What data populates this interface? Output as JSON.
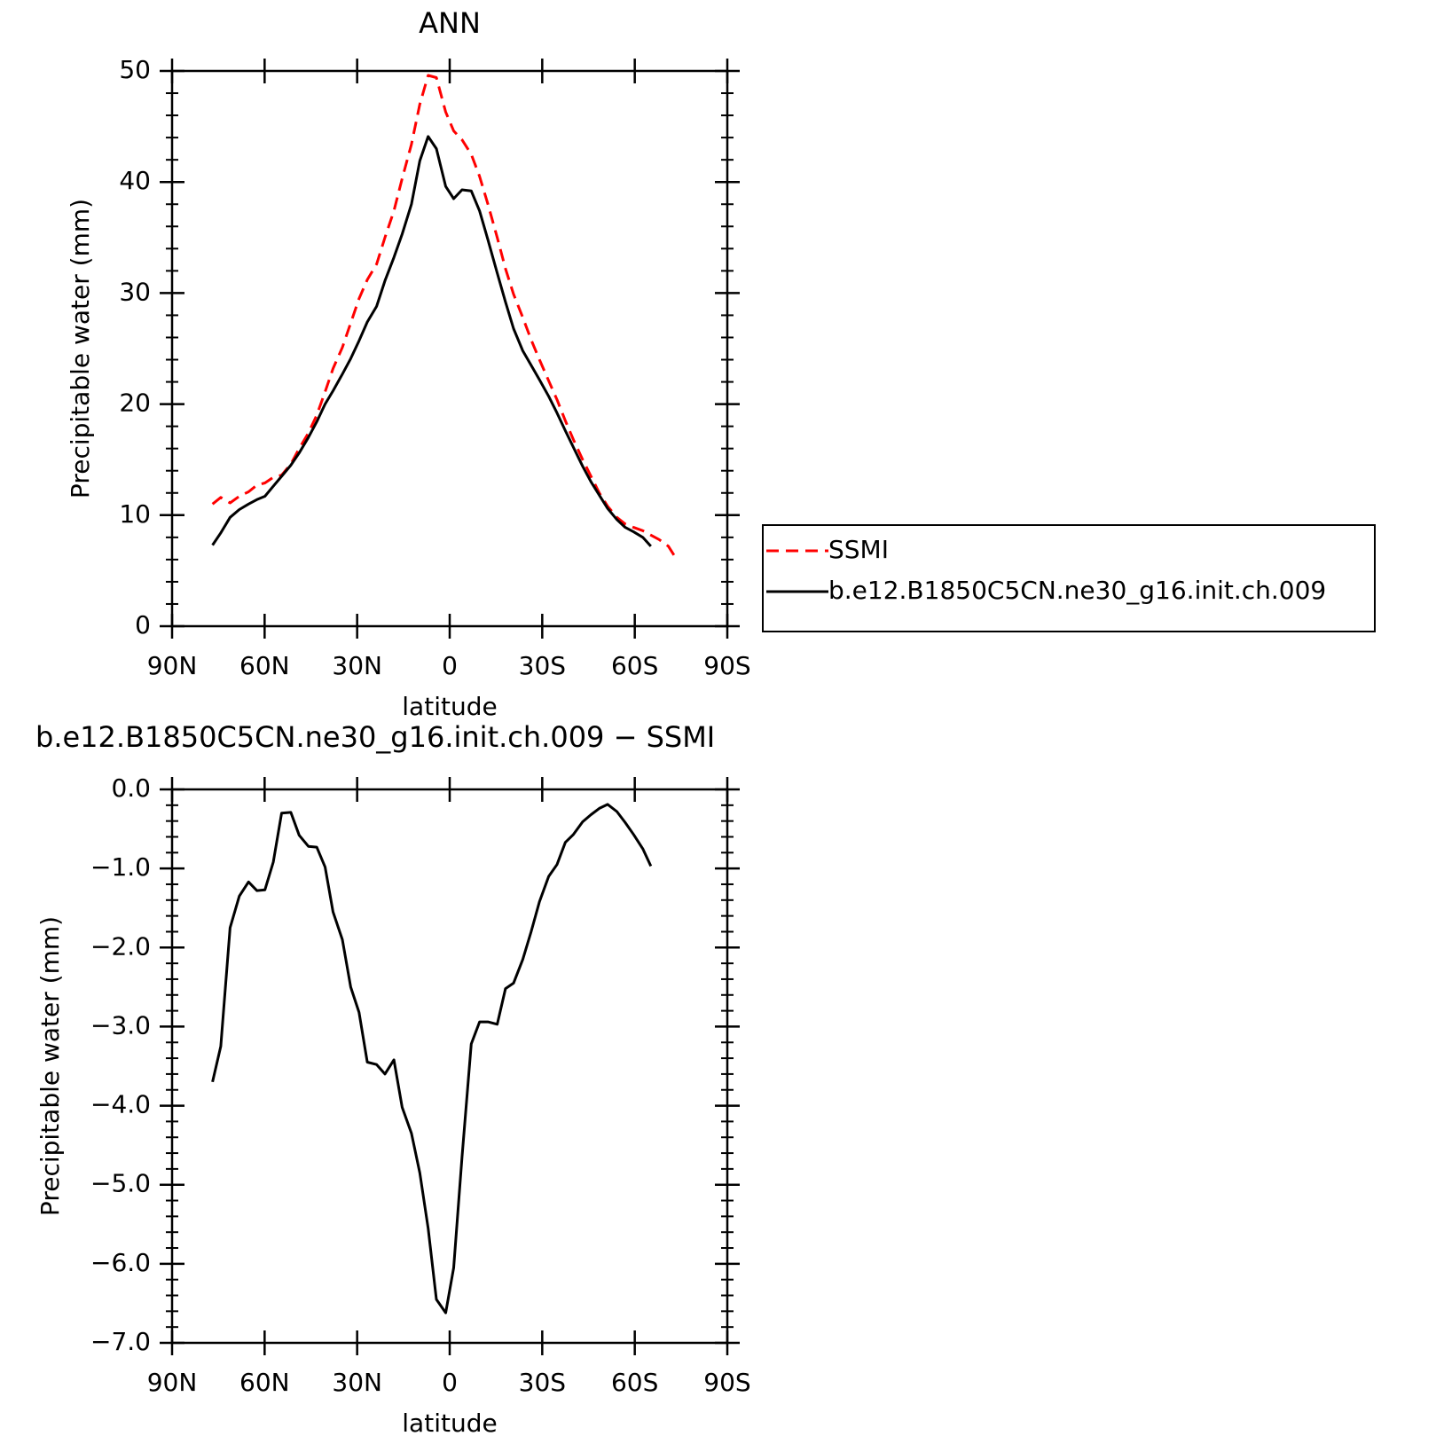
{
  "chart_data": [
    {
      "type": "line",
      "title": "ANN",
      "xlabel": "latitude",
      "ylabel": "Precipitable water (mm)",
      "x": [
        76.9,
        74.2,
        71.2,
        68.2,
        65.2,
        62.5,
        59.9,
        57.2,
        54.5,
        51.5,
        48.8,
        45.8,
        43.1,
        40.4,
        37.8,
        34.8,
        32.1,
        29.4,
        26.7,
        23.7,
        21.0,
        18.1,
        15.4,
        12.4,
        9.7,
        7.0,
        4.3,
        1.3,
        -1.3,
        -4.0,
        -7.0,
        -9.7,
        -12.4,
        -15.4,
        -18.1,
        -20.7,
        -23.7,
        -26.4,
        -29.1,
        -32.1,
        -34.8,
        -37.5,
        -40.1,
        -43.1,
        -45.8,
        -48.5,
        -51.2,
        -54.2,
        -56.9,
        -59.6,
        -62.6,
        -65.2,
        -67.9,
        -70.9,
        -73.6
      ],
      "series": [
        {
          "name": "SSMI",
          "color": "#ff0000",
          "line_style": "dashed",
          "values": [
            11.0,
            11.6,
            11.1,
            11.7,
            12.1,
            12.7,
            12.9,
            13.4,
            13.6,
            14.6,
            16.0,
            17.4,
            19.0,
            21.1,
            23.2,
            25.1,
            27.3,
            29.5,
            31.2,
            32.6,
            35.0,
            37.4,
            40.3,
            43.4,
            47.0,
            49.6,
            49.4,
            46.3,
            44.6,
            43.8,
            42.5,
            40.5,
            38.0,
            35.0,
            32.2,
            29.9,
            27.8,
            25.8,
            24.0,
            22.1,
            20.4,
            18.5,
            16.8,
            15.0,
            13.5,
            12.0,
            10.8,
            9.8,
            9.2,
            8.9,
            8.6,
            8.2,
            7.8,
            7.2,
            6.0
          ]
        },
        {
          "name": "b.e12.B1850C5CN.ne30_g16.init.ch.009",
          "color": "#000000",
          "line_style": "solid",
          "values": [
            7.3,
            8.4,
            9.8,
            10.5,
            11.0,
            11.4,
            11.7,
            12.6,
            13.5,
            14.5,
            15.6,
            17.0,
            18.4,
            20.0,
            21.2,
            22.7,
            24.1,
            25.7,
            27.4,
            28.8,
            31.1,
            33.2,
            35.3,
            38.0,
            41.9,
            44.1,
            43.0,
            39.6,
            38.5,
            39.3,
            39.2,
            37.4,
            34.8,
            31.8,
            29.2,
            26.8,
            24.8,
            23.5,
            22.2,
            20.7,
            19.2,
            17.6,
            16.1,
            14.4,
            13.0,
            11.8,
            10.6,
            9.6,
            8.9,
            8.5,
            8.0,
            7.2,
            null,
            null,
            null
          ]
        }
      ],
      "xlim": [
        90,
        -90
      ],
      "xticks": [
        {
          "value": 90,
          "label": "90N"
        },
        {
          "value": 60,
          "label": "60N"
        },
        {
          "value": 30,
          "label": "30N"
        },
        0,
        {
          "value": -30,
          "label": "30S"
        },
        {
          "value": -60,
          "label": "60S"
        },
        {
          "value": -90,
          "label": "90S"
        }
      ],
      "ylim": [
        0,
        50
      ],
      "yticks": [
        0,
        10,
        20,
        30,
        40,
        50
      ],
      "legend": "outside-right"
    },
    {
      "type": "line",
      "title": "b.e12.B1850C5CN.ne30_g16.init.ch.009 − SSMI",
      "xlabel": "latitude",
      "ylabel": "Precipitable water (mm)",
      "x": [
        76.9,
        74.2,
        71.2,
        68.2,
        65.2,
        62.5,
        59.9,
        57.2,
        54.5,
        51.5,
        48.8,
        45.8,
        43.1,
        40.4,
        37.8,
        34.8,
        32.1,
        29.4,
        26.7,
        23.7,
        21.0,
        18.1,
        15.4,
        12.4,
        9.7,
        7.0,
        4.3,
        1.3,
        -1.3,
        -4.0,
        -7.0,
        -9.7,
        -12.4,
        -15.4,
        -18.1,
        -20.7,
        -23.7,
        -26.4,
        -29.1,
        -32.1,
        -34.8,
        -37.5,
        -40.1,
        -43.1,
        -45.8,
        -48.5,
        -51.2,
        -54.2,
        -56.9,
        -59.6,
        -62.6,
        -65.2
      ],
      "values": [
        -3.7,
        -3.25,
        -1.75,
        -1.35,
        -1.17,
        -1.28,
        -1.27,
        -0.92,
        -0.3,
        -0.29,
        -0.58,
        -0.72,
        -0.73,
        -0.98,
        -1.55,
        -1.9,
        -2.5,
        -2.82,
        -3.45,
        -3.48,
        -3.6,
        -3.42,
        -4.02,
        -4.35,
        -4.85,
        -5.55,
        -6.45,
        -6.62,
        -6.05,
        -4.65,
        -3.22,
        -2.94,
        -2.94,
        -2.97,
        -2.52,
        -2.45,
        -2.15,
        -1.8,
        -1.42,
        -1.1,
        -0.95,
        -0.67,
        -0.57,
        -0.41,
        -0.32,
        -0.24,
        -0.19,
        -0.28,
        -0.42,
        -0.57,
        -0.75,
        -0.97
      ],
      "color": "#000000",
      "xlim": [
        90,
        -90
      ],
      "xticks": [
        {
          "value": 90,
          "label": "90N"
        },
        {
          "value": 60,
          "label": "60N"
        },
        {
          "value": 30,
          "label": "30N"
        },
        0,
        {
          "value": -30,
          "label": "30S"
        },
        {
          "value": -60,
          "label": "60S"
        },
        {
          "value": -90,
          "label": "90S"
        }
      ],
      "ylim": [
        -7,
        0
      ],
      "yticks": [
        {
          "value": -7,
          "label": "−7.0"
        },
        {
          "value": -6,
          "label": "−6.0"
        },
        {
          "value": -5,
          "label": "−5.0"
        },
        {
          "value": -4,
          "label": "−4.0"
        },
        {
          "value": -3,
          "label": "−3.0"
        },
        {
          "value": -2,
          "label": "−2.0"
        },
        {
          "value": -1,
          "label": "−1.0"
        },
        {
          "value": 0,
          "label": "0.0"
        }
      ]
    }
  ]
}
